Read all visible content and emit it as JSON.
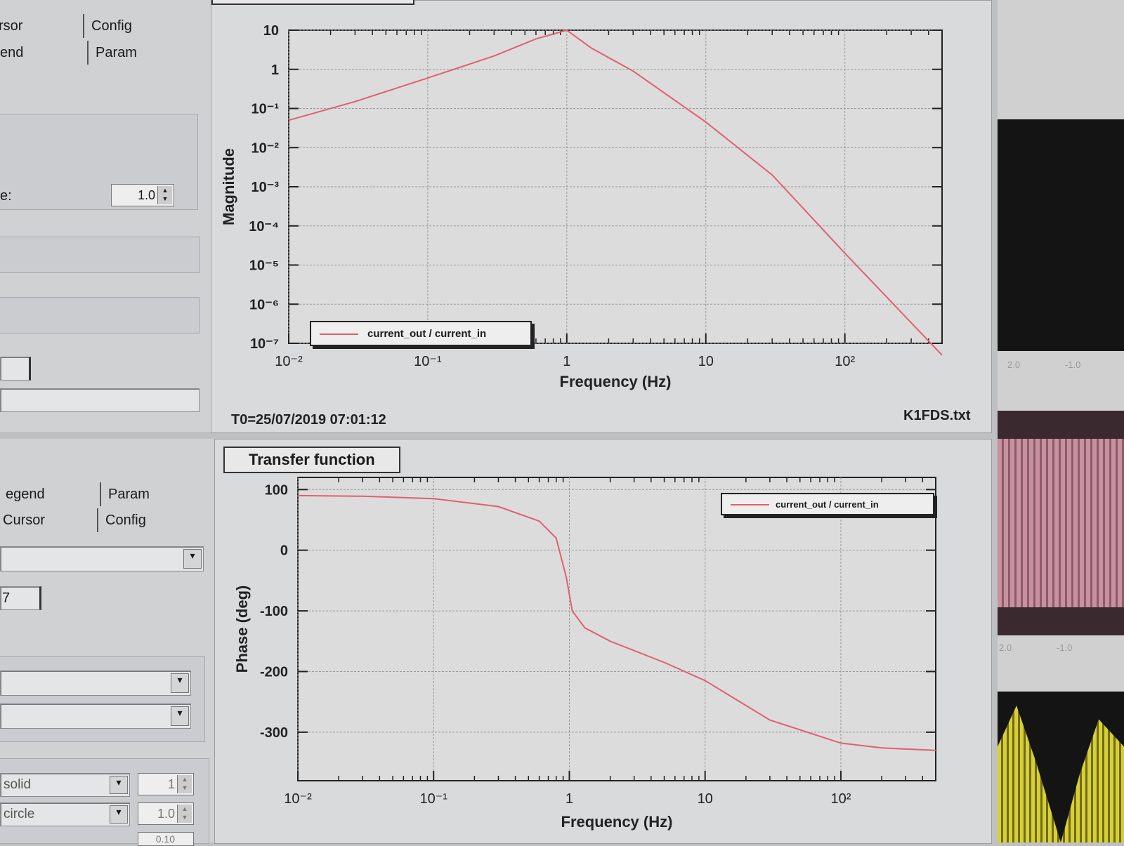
{
  "left_panel_top": {
    "tabs_row1": [
      "rsor",
      "Config"
    ],
    "tabs_row2": [
      "end",
      "Param"
    ],
    "field_label": "e:",
    "spin_value": "1.0"
  },
  "left_panel_bottom": {
    "tabs_row1": [
      "egend",
      "Param"
    ],
    "tabs_row2": [
      "Cursor",
      "Config"
    ],
    "counter_text": "7",
    "line_style": "solid",
    "line_width": "1",
    "marker_style": "circle",
    "marker_size": "1.0",
    "marker_extra": "0.10"
  },
  "magnitude_plot": {
    "t0": "T0=25/07/2019 07:01:12",
    "filename": "K1FDS.txt",
    "chart_data": {
      "type": "line",
      "xlabel": "Frequency (Hz)",
      "ylabel": "Magnitude",
      "xscale": "log",
      "yscale": "log",
      "xlim": [
        0.01,
        500
      ],
      "ylim": [
        1e-07,
        10
      ],
      "x_ticks": [
        "10⁻²",
        "10⁻¹",
        "1",
        "10",
        "10²"
      ],
      "y_ticks": [
        "10",
        "1",
        "10⁻¹",
        "10⁻²",
        "10⁻³",
        "10⁻⁴",
        "10⁻⁵",
        "10⁻⁶",
        "10⁻⁷"
      ],
      "grid": true,
      "legend_position": "bottom-left",
      "series": [
        {
          "name": "current_out / current_in",
          "x": [
            0.01,
            0.03,
            0.1,
            0.3,
            0.6,
            1.0,
            1.5,
            3,
            10,
            30,
            100,
            500
          ],
          "y": [
            0.05,
            0.15,
            0.6,
            2.2,
            6,
            10,
            3.5,
            0.9,
            0.045,
            0.002,
            2e-05,
            5e-08
          ]
        }
      ],
      "color": "#e06070"
    }
  },
  "phase_plot": {
    "title": "Transfer function",
    "chart_data": {
      "type": "line",
      "xlabel": "Frequency (Hz)",
      "ylabel": "Phase (deg)",
      "xscale": "log",
      "xlim": [
        0.01,
        500
      ],
      "ylim": [
        -380,
        120
      ],
      "x_ticks": [
        "10⁻²",
        "10⁻¹",
        "1",
        "10",
        "10²"
      ],
      "y_ticks": [
        100,
        0,
        -100,
        -200,
        -300
      ],
      "grid": true,
      "legend_position": "top-right",
      "series": [
        {
          "name": "current_out / current_in",
          "x": [
            0.01,
            0.03,
            0.1,
            0.3,
            0.6,
            0.8,
            0.95,
            1.05,
            1.3,
            2,
            5,
            10,
            30,
            100,
            200,
            500
          ],
          "y": [
            90,
            89,
            85,
            72,
            48,
            20,
            -45,
            -100,
            -128,
            -150,
            -185,
            -215,
            -280,
            -318,
            -326,
            -330
          ]
        }
      ],
      "color": "#e06070"
    }
  },
  "right_strip": {
    "ticks_top": [
      "2.0",
      "-1.0"
    ],
    "ticks_bottom": [
      "2.0",
      "-1.0"
    ]
  }
}
